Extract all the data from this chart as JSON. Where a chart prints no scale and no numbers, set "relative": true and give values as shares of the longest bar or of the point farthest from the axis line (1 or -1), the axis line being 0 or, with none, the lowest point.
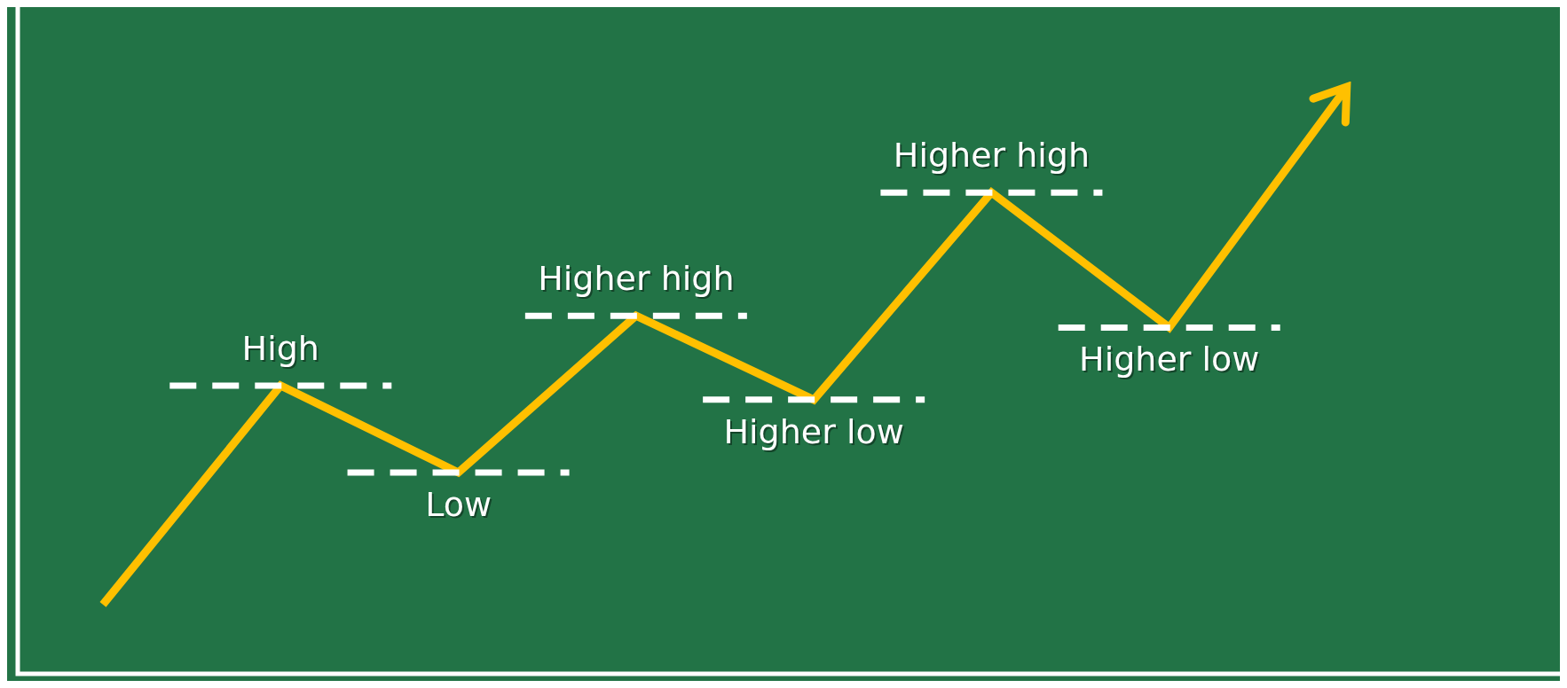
{
  "chart_data": {
    "type": "line",
    "relative": true,
    "categories": [
      null,
      null,
      null,
      null,
      null,
      null,
      null,
      null
    ],
    "series": [
      {
        "color": "#ffc000",
        "values": [
          0.118,
          0.491,
          0.343,
          0.61,
          0.467,
          0.82,
          0.59,
          1
        ]
      }
    ],
    "ref_lines": [
      {
        "axis": "y",
        "value": 0.491,
        "label": "High",
        "color": "#ffffff",
        "line_style": "dashed"
      },
      {
        "axis": "y",
        "value": 0.343,
        "label": "Low",
        "color": "#ffffff",
        "line_style": "dashed"
      },
      {
        "axis": "y",
        "value": 0.61,
        "label": "Higher high",
        "color": "#ffffff",
        "line_style": "dashed"
      },
      {
        "axis": "y",
        "value": 0.467,
        "label": "Higher low",
        "color": "#ffffff",
        "line_style": "dashed"
      },
      {
        "axis": "y",
        "value": 0.82,
        "label": "Higher high",
        "color": "#ffffff",
        "line_style": "dashed"
      },
      {
        "axis": "y",
        "value": 0.59,
        "label": "Higher low",
        "color": "#ffffff",
        "line_style": "dashed"
      }
    ],
    "grid": false,
    "legend": false,
    "marker": "none",
    "line_style": "solid"
  }
}
